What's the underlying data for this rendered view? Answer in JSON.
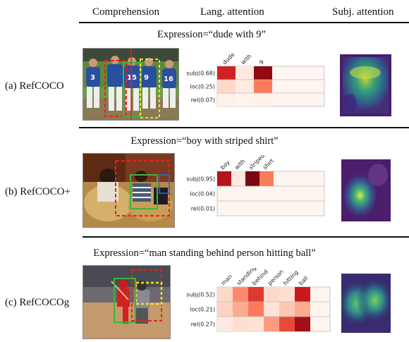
{
  "headers": {
    "comprehension": "Comprehension",
    "lang_attention": "Lang. attention",
    "subj_attention": "Subj. attention"
  },
  "rows": [
    {
      "label": "(a) RefCOCO",
      "expression": "Expression=“dude with 9”",
      "words": [
        "dude",
        "with",
        "9"
      ],
      "modules": [
        "subj(0.68)",
        "loc(0.25)",
        "rel(0.07)"
      ],
      "weights": [
        [
          0.72,
          0.05,
          0.9
        ],
        [
          0.12,
          0.04,
          0.45
        ],
        [
          0.02,
          0.01,
          0.02
        ]
      ],
      "image_description": "baseball players in blue jerseys 3, 15, 16"
    },
    {
      "label": "(b) RefCOCO+",
      "expression": "Expression=“boy with striped shirt”",
      "words": [
        "boy",
        "with",
        "striped",
        "shirt"
      ],
      "modules": [
        "subj(0.95)",
        "loc(0.04)",
        "rel(0.01)"
      ],
      "weights": [
        [
          0.8,
          0.06,
          0.95,
          0.45
        ],
        [
          0.0,
          0.0,
          0.0,
          0.0
        ],
        [
          0.0,
          0.0,
          0.0,
          0.0
        ]
      ],
      "image_description": "children sitting on couch"
    },
    {
      "label": "(c) RefCOCOg",
      "expression": "Expression=“man standing behind person hitting ball”",
      "words": [
        "man",
        "standing",
        "behind",
        "person",
        "hitting",
        "ball"
      ],
      "modules": [
        "subj(0.52)",
        "loc(0.21)",
        "rel(0.27)"
      ],
      "weights": [
        [
          0.12,
          0.4,
          0.65,
          0.12,
          0.1,
          0.75
        ],
        [
          0.15,
          0.3,
          0.45,
          0.08,
          0.2,
          0.3
        ],
        [
          0.05,
          0.1,
          0.08,
          0.35,
          0.6,
          0.85
        ]
      ],
      "image_description": "baseball batter with catcher behind"
    }
  ],
  "colors": {
    "heat_low": "#fff5f0",
    "heat_high": "#67000d",
    "grid": "#bbbbbb",
    "box_red": "#e8231b",
    "box_green": "#3cb33c",
    "box_yellow": "#f2e521"
  }
}
